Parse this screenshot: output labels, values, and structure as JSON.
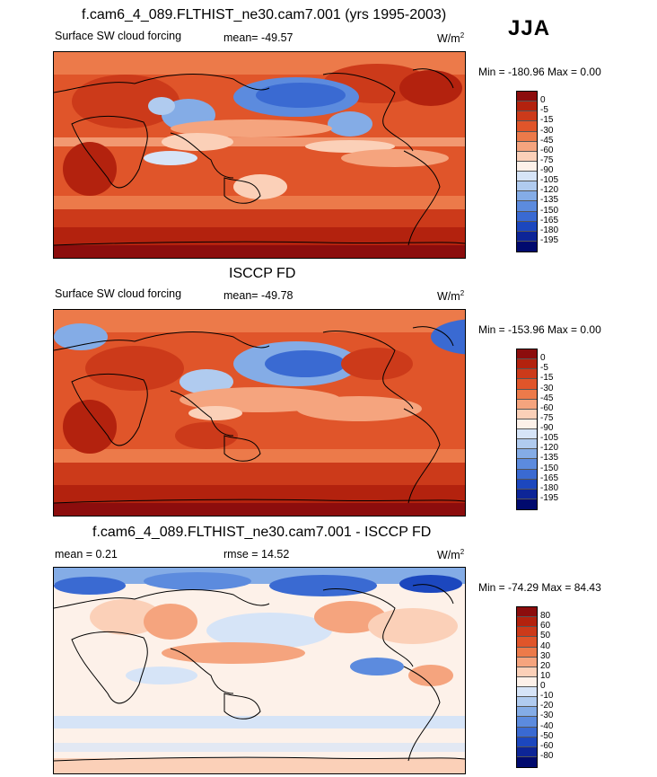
{
  "season": "JJA",
  "panels": [
    {
      "title": "f.cam6_4_089.FLTHIST_ne30.cam7.001 (yrs 1995-2003)",
      "left": "Surface SW cloud forcing",
      "center": "mean= -49.57",
      "units": "W/m",
      "units_exp": "2",
      "minmax": "Min = -180.96 Max =   0.00",
      "colorbar_labels": [
        "0",
        "-5",
        "-15",
        "-30",
        "-45",
        "-60",
        "-75",
        "-90",
        "-105",
        "-120",
        "-135",
        "-150",
        "-165",
        "-180",
        "-195"
      ],
      "colors": [
        "#8c0d0d",
        "#b3220e",
        "#cc3a1a",
        "#e0552a",
        "#ec7a4a",
        "#f5a47e",
        "#fbd0b8",
        "#fdf1e9",
        "#d6e4f7",
        "#b0cbef",
        "#84ace6",
        "#5c8bde",
        "#3a6ad2",
        "#1c47be",
        "#0d2597",
        "#000a6e"
      ]
    },
    {
      "title": "ISCCP FD",
      "left": "Surface SW cloud forcing",
      "center": "mean= -49.78",
      "units": "W/m",
      "units_exp": "2",
      "minmax": "Min = -153.96 Max =   0.00",
      "colorbar_labels": [
        "0",
        "-5",
        "-15",
        "-30",
        "-45",
        "-60",
        "-75",
        "-90",
        "-105",
        "-120",
        "-135",
        "-150",
        "-165",
        "-180",
        "-195"
      ],
      "colors": [
        "#8c0d0d",
        "#b3220e",
        "#cc3a1a",
        "#e0552a",
        "#ec7a4a",
        "#f5a47e",
        "#fbd0b8",
        "#fdf1e9",
        "#d6e4f7",
        "#b0cbef",
        "#84ace6",
        "#5c8bde",
        "#3a6ad2",
        "#1c47be",
        "#0d2597",
        "#000a6e"
      ]
    },
    {
      "title": "f.cam6_4_089.FLTHIST_ne30.cam7.001 - ISCCP FD",
      "left": "mean =   0.21",
      "center": "rmse =  14.52",
      "units": "W/m",
      "units_exp": "2",
      "minmax": "Min = -74.29 Max =  84.43",
      "colorbar_labels": [
        "80",
        "60",
        "50",
        "40",
        "30",
        "20",
        "10",
        "0",
        "-10",
        "-20",
        "-30",
        "-40",
        "-50",
        "-60",
        "-80"
      ],
      "colors": [
        "#8c0d0d",
        "#b3220e",
        "#cc3a1a",
        "#e0552a",
        "#ec7a4a",
        "#f5a47e",
        "#fbd0b8",
        "#fdf1e9",
        "#d6e4f7",
        "#b0cbef",
        "#84ace6",
        "#5c8bde",
        "#3a6ad2",
        "#1c47be",
        "#0d2597",
        "#000a6e"
      ]
    }
  ]
}
